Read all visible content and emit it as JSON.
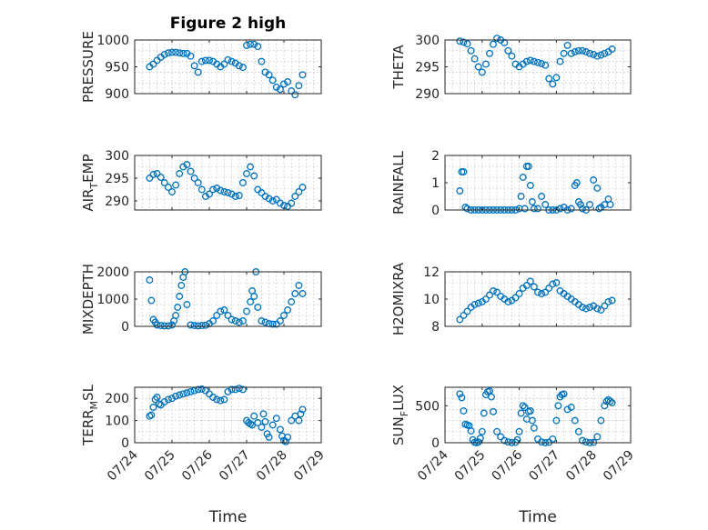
{
  "figure": {
    "title": "Figure 2 high",
    "xlabel": "Time",
    "xticks": [
      "07/24",
      "07/25",
      "07/26",
      "07/27",
      "07/28",
      "07/29"
    ],
    "marker_color": "#0072bd"
  },
  "chart_data": [
    {
      "type": "scatter",
      "title": "Figure 2 high",
      "ylabel_main": "PRESSURE",
      "ylabel_sub": "",
      "ylim": [
        900,
        1000
      ],
      "yticks": [
        "900",
        "950",
        "1000"
      ],
      "ytick_values": [
        900,
        950,
        1000
      ],
      "xlim": [
        0,
        5
      ],
      "grid": true,
      "x": [
        0.4,
        0.5,
        0.6,
        0.7,
        0.8,
        0.9,
        1.0,
        1.1,
        1.2,
        1.3,
        1.4,
        1.5,
        1.6,
        1.7,
        1.8,
        1.9,
        2.0,
        2.1,
        2.2,
        2.3,
        2.4,
        2.5,
        2.6,
        2.7,
        2.8,
        2.9,
        3.0,
        3.1,
        3.2,
        3.3,
        3.4,
        3.5,
        3.6,
        3.7,
        3.8,
        3.9,
        4.0,
        4.1,
        4.2,
        4.3,
        4.4,
        4.5
      ],
      "y": [
        950,
        955,
        962,
        968,
        973,
        976,
        977,
        977,
        976,
        975,
        975,
        970,
        952,
        940,
        960,
        962,
        962,
        960,
        955,
        950,
        955,
        963,
        960,
        957,
        952,
        949,
        990,
        992,
        992,
        988,
        960,
        940,
        935,
        925,
        912,
        908,
        918,
        922,
        905,
        898,
        915,
        935
      ]
    },
    {
      "type": "scatter",
      "title": "",
      "ylabel_main": "THETA",
      "ylabel_sub": "",
      "ylim": [
        290,
        300
      ],
      "yticks": [
        "290",
        "295",
        "300"
      ],
      "ytick_values": [
        290,
        295,
        300
      ],
      "xlim": [
        0,
        5
      ],
      "grid": true,
      "x": [
        0.4,
        0.5,
        0.6,
        0.7,
        0.8,
        0.9,
        1.0,
        1.1,
        1.2,
        1.3,
        1.4,
        1.5,
        1.6,
        1.7,
        1.8,
        1.9,
        2.0,
        2.1,
        2.2,
        2.3,
        2.4,
        2.5,
        2.6,
        2.7,
        2.8,
        2.9,
        3.0,
        3.1,
        3.2,
        3.3,
        3.4,
        3.5,
        3.6,
        3.7,
        3.8,
        3.9,
        4.0,
        4.1,
        4.2,
        4.3,
        4.4,
        4.5
      ],
      "y": [
        299.8,
        299.6,
        299.3,
        298.0,
        296.5,
        295.0,
        294.0,
        295.5,
        297.5,
        299.2,
        300.3,
        300.0,
        299.5,
        298.0,
        297.0,
        295.5,
        295.0,
        295.5,
        296.0,
        296.2,
        296.0,
        295.8,
        295.6,
        295.3,
        292.8,
        291.8,
        293.0,
        296.0,
        297.5,
        299.0,
        297.5,
        297.8,
        298.0,
        298.0,
        297.8,
        297.5,
        297.3,
        297.0,
        297.2,
        297.5,
        297.8,
        298.3
      ]
    },
    {
      "type": "scatter",
      "title": "",
      "ylabel_main": "AIR",
      "ylabel_sub": "T",
      "ylabel_tail": "EMP",
      "ylim": [
        288,
        300
      ],
      "yticks": [
        "290",
        "295",
        "300"
      ],
      "ytick_values": [
        290,
        295,
        300
      ],
      "xlim": [
        0,
        5
      ],
      "grid": true,
      "x": [
        0.4,
        0.5,
        0.6,
        0.7,
        0.8,
        0.9,
        1.0,
        1.1,
        1.2,
        1.3,
        1.4,
        1.5,
        1.6,
        1.7,
        1.8,
        1.9,
        2.0,
        2.1,
        2.2,
        2.3,
        2.4,
        2.5,
        2.6,
        2.7,
        2.8,
        2.9,
        3.0,
        3.1,
        3.2,
        3.3,
        3.4,
        3.5,
        3.6,
        3.7,
        3.8,
        3.9,
        4.0,
        4.1,
        4.2,
        4.3,
        4.4,
        4.5
      ],
      "y": [
        295.0,
        295.8,
        296.0,
        295.2,
        294.0,
        293.0,
        292.0,
        293.5,
        296.0,
        297.5,
        298.0,
        296.5,
        295.0,
        294.0,
        292.5,
        291.0,
        291.5,
        292.5,
        292.8,
        292.3,
        292.0,
        291.8,
        291.5,
        291.0,
        291.2,
        294.0,
        296.0,
        297.5,
        295.5,
        292.5,
        291.8,
        291.0,
        290.5,
        290.0,
        290.3,
        289.5,
        289.0,
        288.8,
        289.5,
        291.0,
        292.0,
        293.0
      ]
    },
    {
      "type": "scatter",
      "title": "",
      "ylabel_main": "RAINFALL",
      "ylabel_sub": "",
      "ylim": [
        0,
        2
      ],
      "yticks": [
        "0",
        "1",
        "2"
      ],
      "ytick_values": [
        0,
        1,
        2
      ],
      "xlim": [
        0,
        5
      ],
      "grid": true,
      "x": [
        0.4,
        0.45,
        0.5,
        0.55,
        0.6,
        0.7,
        0.8,
        0.9,
        1.0,
        1.1,
        1.2,
        1.3,
        1.4,
        1.5,
        1.6,
        1.7,
        1.8,
        1.9,
        2.0,
        2.05,
        2.1,
        2.15,
        2.2,
        2.25,
        2.3,
        2.35,
        2.4,
        2.5,
        2.6,
        2.7,
        2.8,
        2.9,
        3.0,
        3.1,
        3.2,
        3.3,
        3.4,
        3.5,
        3.55,
        3.6,
        3.65,
        3.7,
        3.8,
        3.9,
        4.0,
        4.1,
        4.15,
        4.2,
        4.3,
        4.4,
        4.45
      ],
      "y": [
        0.7,
        1.4,
        1.4,
        0.1,
        0.05,
        0,
        0,
        0,
        0,
        0,
        0,
        0,
        0,
        0,
        0,
        0,
        0,
        0,
        0.05,
        0.5,
        1.2,
        0.05,
        1.6,
        1.6,
        0.9,
        0.3,
        0.05,
        0.05,
        0.5,
        0.2,
        0,
        0,
        0,
        0.05,
        0.1,
        0,
        0.05,
        0.9,
        1.0,
        0.3,
        0.2,
        0.05,
        0,
        0.2,
        1.1,
        0.8,
        0.05,
        0.1,
        0.2,
        0.4,
        0.2
      ]
    },
    {
      "type": "scatter",
      "title": "",
      "ylabel_main": "MIXDEPTH",
      "ylabel_sub": "",
      "ylim": [
        0,
        2000
      ],
      "yticks": [
        "0",
        "1000",
        "2000"
      ],
      "ytick_values": [
        0,
        1000,
        2000
      ],
      "xlim": [
        0,
        5
      ],
      "grid": true,
      "x": [
        0.4,
        0.45,
        0.5,
        0.55,
        0.6,
        0.7,
        0.8,
        0.9,
        1.0,
        1.05,
        1.1,
        1.15,
        1.2,
        1.25,
        1.3,
        1.35,
        1.4,
        1.5,
        1.6,
        1.7,
        1.8,
        1.9,
        2.0,
        2.1,
        2.2,
        2.3,
        2.4,
        2.5,
        2.6,
        2.7,
        2.8,
        2.9,
        3.0,
        3.1,
        3.15,
        3.2,
        3.25,
        3.3,
        3.4,
        3.5,
        3.6,
        3.7,
        3.8,
        3.9,
        4.0,
        4.1,
        4.2,
        4.3,
        4.4,
        4.5
      ],
      "y": [
        1700,
        950,
        250,
        150,
        50,
        30,
        20,
        20,
        50,
        200,
        400,
        700,
        1100,
        1500,
        1800,
        2000,
        800,
        50,
        30,
        20,
        30,
        40,
        100,
        200,
        400,
        550,
        600,
        400,
        250,
        200,
        150,
        200,
        550,
        900,
        1300,
        1100,
        2000,
        700,
        200,
        150,
        100,
        80,
        80,
        200,
        400,
        600,
        900,
        1200,
        1500,
        1200
      ]
    },
    {
      "type": "scatter",
      "title": "",
      "ylabel_main": "H2OMIXRA",
      "ylabel_sub": "",
      "ylim": [
        8,
        12
      ],
      "yticks": [
        "8",
        "10",
        "12"
      ],
      "ytick_values": [
        8,
        10,
        12
      ],
      "xlim": [
        0,
        5
      ],
      "grid": true,
      "x": [
        0.4,
        0.5,
        0.6,
        0.7,
        0.8,
        0.9,
        1.0,
        1.1,
        1.2,
        1.3,
        1.4,
        1.5,
        1.6,
        1.7,
        1.8,
        1.9,
        2.0,
        2.1,
        2.2,
        2.3,
        2.4,
        2.5,
        2.6,
        2.7,
        2.8,
        2.9,
        3.0,
        3.1,
        3.2,
        3.3,
        3.4,
        3.5,
        3.6,
        3.7,
        3.8,
        3.9,
        4.0,
        4.1,
        4.2,
        4.3,
        4.4,
        4.5
      ],
      "y": [
        8.5,
        8.8,
        9.1,
        9.4,
        9.6,
        9.7,
        9.8,
        10.0,
        10.3,
        10.6,
        10.5,
        10.2,
        10.0,
        9.8,
        9.9,
        10.1,
        10.4,
        10.8,
        11.0,
        11.3,
        10.9,
        10.5,
        10.4,
        10.5,
        10.8,
        11.1,
        11.2,
        10.6,
        10.4,
        10.2,
        10.0,
        9.8,
        9.6,
        9.4,
        9.3,
        9.4,
        9.5,
        9.3,
        9.2,
        9.5,
        9.8,
        9.9
      ]
    },
    {
      "type": "scatter",
      "title": "",
      "ylabel_main": "TERR",
      "ylabel_sub": "M",
      "ylabel_tail": "SL",
      "ylim": [
        0,
        250
      ],
      "yticks": [
        "0",
        "100",
        "200"
      ],
      "ytick_values": [
        0,
        100,
        200
      ],
      "xlim": [
        0,
        5
      ],
      "grid": true,
      "x": [
        0.4,
        0.45,
        0.5,
        0.55,
        0.6,
        0.65,
        0.7,
        0.8,
        0.9,
        1.0,
        1.1,
        1.2,
        1.3,
        1.4,
        1.5,
        1.6,
        1.7,
        1.8,
        1.9,
        2.0,
        2.1,
        2.2,
        2.3,
        2.4,
        2.5,
        2.6,
        2.7,
        2.8,
        2.9,
        3.0,
        3.05,
        3.1,
        3.15,
        3.2,
        3.3,
        3.4,
        3.45,
        3.5,
        3.55,
        3.6,
        3.7,
        3.8,
        3.9,
        3.95,
        4.0,
        4.05,
        4.1,
        4.2,
        4.3,
        4.4,
        4.45,
        4.5
      ],
      "y": [
        120,
        125,
        160,
        195,
        205,
        175,
        170,
        185,
        195,
        200,
        210,
        215,
        220,
        225,
        230,
        235,
        240,
        242,
        235,
        220,
        205,
        195,
        190,
        195,
        230,
        240,
        240,
        245,
        240,
        100,
        90,
        85,
        80,
        120,
        90,
        70,
        130,
        95,
        40,
        25,
        80,
        110,
        60,
        30,
        10,
        5,
        25,
        100,
        120,
        100,
        130,
        150
      ]
    },
    {
      "type": "scatter",
      "title": "",
      "ylabel_main": "SUN",
      "ylabel_sub": "F",
      "ylabel_tail": "LUX",
      "ylim": [
        0,
        750
      ],
      "yticks": [
        "0",
        "500"
      ],
      "ytick_values": [
        0,
        500
      ],
      "xlim": [
        0,
        5
      ],
      "grid": true,
      "x": [
        0.4,
        0.45,
        0.5,
        0.55,
        0.6,
        0.65,
        0.7,
        0.75,
        0.8,
        0.85,
        0.9,
        0.95,
        1.0,
        1.05,
        1.1,
        1.15,
        1.2,
        1.25,
        1.3,
        1.4,
        1.5,
        1.6,
        1.7,
        1.8,
        1.9,
        1.95,
        2.0,
        2.05,
        2.1,
        2.15,
        2.2,
        2.25,
        2.3,
        2.35,
        2.4,
        2.5,
        2.6,
        2.7,
        2.8,
        2.9,
        3.0,
        3.05,
        3.1,
        3.15,
        3.2,
        3.3,
        3.4,
        3.5,
        3.6,
        3.7,
        3.8,
        3.9,
        4.0,
        4.1,
        4.2,
        4.3,
        4.35,
        4.4,
        4.45,
        4.5
      ],
      "y": [
        660,
        610,
        430,
        250,
        240,
        230,
        160,
        40,
        5,
        0,
        10,
        60,
        150,
        400,
        650,
        690,
        700,
        620,
        420,
        150,
        80,
        30,
        10,
        0,
        5,
        40,
        150,
        400,
        500,
        480,
        320,
        420,
        430,
        300,
        200,
        50,
        10,
        0,
        5,
        50,
        300,
        500,
        620,
        650,
        660,
        450,
        480,
        300,
        150,
        30,
        10,
        0,
        5,
        80,
        300,
        500,
        560,
        580,
        560,
        540
      ]
    }
  ]
}
